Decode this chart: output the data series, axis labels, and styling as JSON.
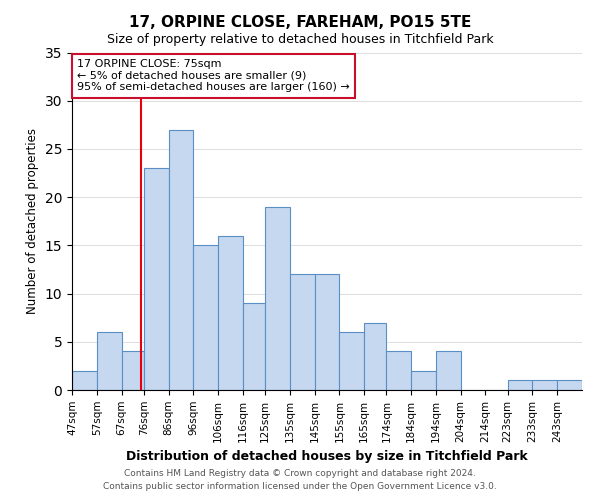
{
  "title": "17, ORPINE CLOSE, FAREHAM, PO15 5TE",
  "subtitle": "Size of property relative to detached houses in Titchfield Park",
  "xlabel": "Distribution of detached houses by size in Titchfield Park",
  "ylabel": "Number of detached properties",
  "bin_labels": [
    "47sqm",
    "57sqm",
    "67sqm",
    "76sqm",
    "86sqm",
    "96sqm",
    "106sqm",
    "116sqm",
    "125sqm",
    "135sqm",
    "145sqm",
    "155sqm",
    "165sqm",
    "174sqm",
    "184sqm",
    "194sqm",
    "204sqm",
    "214sqm",
    "223sqm",
    "233sqm",
    "243sqm"
  ],
  "bin_edges": [
    47,
    57,
    67,
    76,
    86,
    96,
    106,
    116,
    125,
    135,
    145,
    155,
    165,
    174,
    184,
    194,
    204,
    214,
    223,
    233,
    243,
    253
  ],
  "counts": [
    2,
    6,
    4,
    23,
    27,
    15,
    16,
    9,
    19,
    12,
    12,
    6,
    7,
    4,
    2,
    4,
    0,
    0,
    1,
    1,
    1
  ],
  "bar_color": "#c5d8f0",
  "bar_edge_color": "#5a8fc5",
  "ref_line_x": 75,
  "ref_line_color": "#e8000e",
  "annotation_title": "17 ORPINE CLOSE: 75sqm",
  "annotation_line1": "← 5% of detached houses are smaller (9)",
  "annotation_line2": "95% of semi-detached houses are larger (160) →",
  "annotation_box_edge": "#c8102e",
  "ylim": [
    0,
    35
  ],
  "footer1": "Contains HM Land Registry data © Crown copyright and database right 2024.",
  "footer2": "Contains public sector information licensed under the Open Government Licence v3.0."
}
